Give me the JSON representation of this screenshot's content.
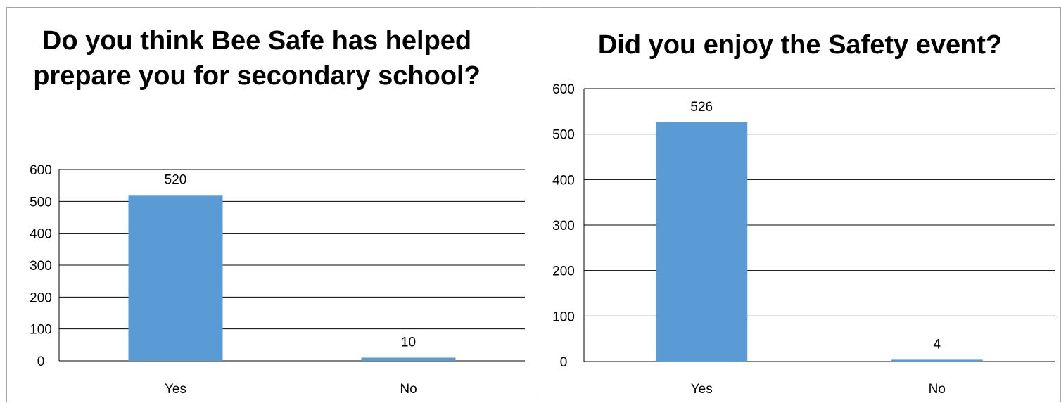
{
  "chart_data": [
    {
      "type": "bar",
      "title": "Do you think Bee Safe has helped prepare you for secondary school?",
      "categories": [
        "Yes",
        "No"
      ],
      "values": [
        520,
        10
      ],
      "data_labels": [
        "520",
        "10"
      ],
      "ylim": [
        0,
        600
      ],
      "yticks": [
        "0",
        "100",
        "200",
        "300",
        "400",
        "500",
        "600"
      ],
      "grid": true,
      "legend": "none",
      "bar_color": "#5b9bd5"
    },
    {
      "type": "bar",
      "title": "Did you enjoy the Safety event?",
      "categories": [
        "Yes",
        "No"
      ],
      "values": [
        526,
        4
      ],
      "data_labels": [
        "526",
        "4"
      ],
      "ylim": [
        0,
        600
      ],
      "yticks": [
        "0",
        "100",
        "200",
        "300",
        "400",
        "500",
        "600"
      ],
      "grid": true,
      "legend": "none",
      "bar_color": "#5b9bd5"
    }
  ]
}
